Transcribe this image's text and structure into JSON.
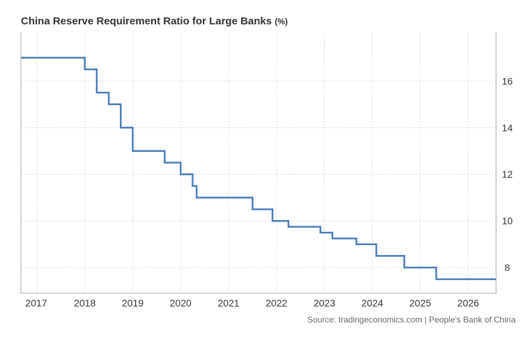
{
  "chart_data": {
    "type": "line",
    "step": true,
    "title": "China Reserve Requirement Ratio for Large Banks",
    "unit": "(%)",
    "source": "Source: tradingeconomics.com | People's Bank of China",
    "xlabel": "",
    "ylabel": "",
    "x_ticks": [
      "2017",
      "2018",
      "2019",
      "2020",
      "2021",
      "2022",
      "2023",
      "2024",
      "2025",
      "2026"
    ],
    "y_ticks": [
      "8",
      "10",
      "12",
      "14",
      "16"
    ],
    "xlim": [
      "2016-09",
      "2026-08"
    ],
    "ylim": [
      6.9,
      18.1
    ],
    "y_axis_position": "right",
    "grid": true,
    "colors": {
      "line": "#4a7ebb",
      "grid": "#d9d9d9",
      "axis": "#aaaaaa",
      "text": "#333333"
    },
    "series": [
      {
        "x": [
          "2016-09",
          "2018-01",
          "2018-04",
          "2018-07",
          "2018-10",
          "2019-01",
          "2019-09",
          "2020-01",
          "2020-04",
          "2020-05",
          "2021-07",
          "2021-12",
          "2022-04",
          "2022-12",
          "2023-03",
          "2023-09",
          "2024-02",
          "2024-09",
          "2025-05",
          "2026-08"
        ],
        "values": [
          17.0,
          16.5,
          15.5,
          15.0,
          14.0,
          13.0,
          12.5,
          12.0,
          11.5,
          11.0,
          10.5,
          10.0,
          9.75,
          9.5,
          9.25,
          9.0,
          8.5,
          8.0,
          7.5,
          7.5
        ]
      }
    ]
  }
}
